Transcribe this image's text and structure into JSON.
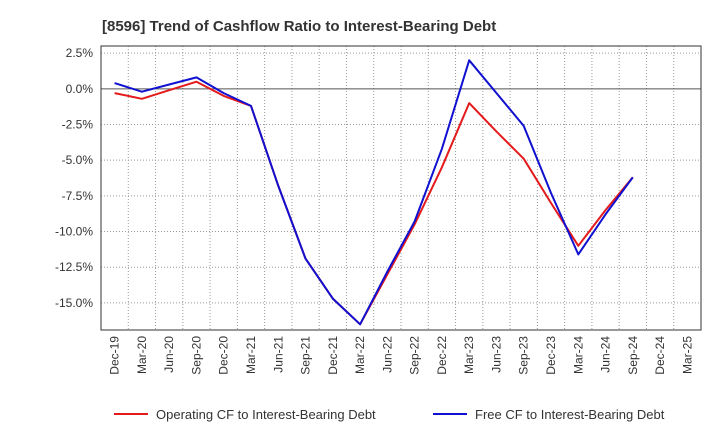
{
  "chart_data": {
    "type": "line",
    "title": "[8596]  Trend of Cashflow Ratio to Interest-Bearing Debt",
    "xlabel": "",
    "ylabel": "",
    "categories": [
      "Dec-19",
      "Mar-20",
      "Jun-20",
      "Sep-20",
      "Dec-20",
      "Mar-21",
      "Jun-21",
      "Sep-21",
      "Dec-21",
      "Mar-22",
      "Jun-22",
      "Sep-22",
      "Dec-22",
      "Mar-23",
      "Jun-23",
      "Sep-23",
      "Dec-23",
      "Mar-24",
      "Jun-24",
      "Sep-24",
      "Dec-24",
      "Mar-25"
    ],
    "y_ticks": [
      2.5,
      0.0,
      -2.5,
      -5.0,
      -7.5,
      -10.0,
      -12.5,
      -15.0
    ],
    "y_tick_labels": [
      "2.5%",
      "0.0%",
      "-2.5%",
      "-5.0%",
      "-7.5%",
      "-10.0%",
      "-12.5%",
      "-15.0%"
    ],
    "ylim": [
      -16.9,
      3.0
    ],
    "grid": true,
    "legend_position": "bottom",
    "series": [
      {
        "name": "Operating CF to Interest-Bearing Debt",
        "color": "#e41a1c",
        "values": [
          -0.3,
          -0.7,
          -0.1,
          0.5,
          -0.5,
          -1.2,
          -6.8,
          -11.9,
          -14.7,
          -16.5,
          -13.0,
          -9.5,
          -5.5,
          -1.0,
          -3.0,
          -4.9,
          -8.0,
          -11.0,
          -8.5,
          -6.2,
          null,
          null
        ]
      },
      {
        "name": "Free CF to Interest-Bearing Debt",
        "color": "#1010d0",
        "values": [
          0.4,
          -0.2,
          0.3,
          0.8,
          -0.3,
          -1.2,
          -6.8,
          -11.9,
          -14.7,
          -16.5,
          -12.8,
          -9.3,
          -4.2,
          2.0,
          -0.3,
          -2.6,
          -7.3,
          -11.6,
          -8.8,
          -6.2,
          null,
          null
        ]
      }
    ]
  }
}
